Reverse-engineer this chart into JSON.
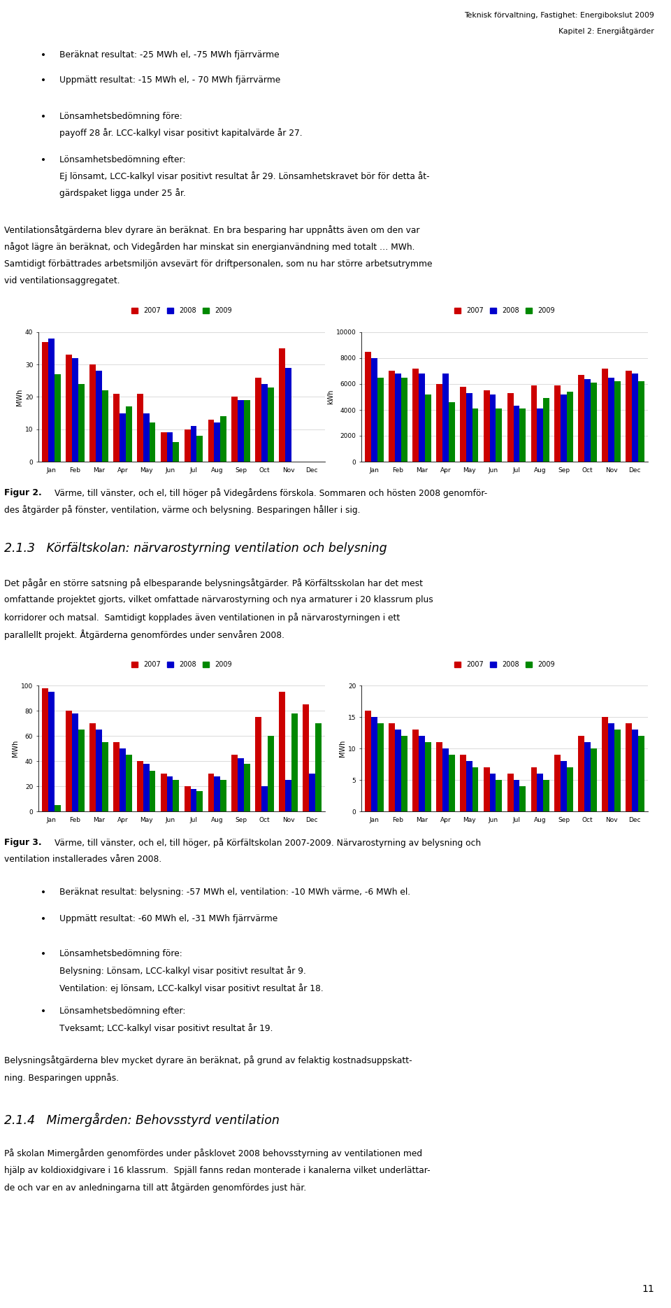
{
  "header_line1": "Teknisk förvaltning, Fastighet: Energibokslut 2009",
  "header_line2": "Kapitel 2: Energiåtgärder",
  "page_number": "11",
  "months": [
    "Jan",
    "Feb",
    "Mar",
    "Apr",
    "May",
    "Jun",
    "Jul",
    "Aug",
    "Sep",
    "Oct",
    "Nov",
    "Dec"
  ],
  "chart1_left_2007": [
    37,
    33,
    30,
    21,
    21,
    9,
    10,
    13,
    20,
    26,
    35,
    0
  ],
  "chart1_left_2008": [
    38,
    32,
    28,
    15,
    15,
    9,
    11,
    12,
    19,
    24,
    29,
    0
  ],
  "chart1_left_2009": [
    27,
    24,
    22,
    17,
    12,
    6,
    8,
    14,
    19,
    23,
    0,
    0
  ],
  "chart1_right_2007": [
    8500,
    7000,
    7200,
    6000,
    5800,
    5500,
    5300,
    5900,
    5900,
    6700,
    7200,
    7000
  ],
  "chart1_right_2008": [
    8000,
    6800,
    6800,
    6800,
    5300,
    5200,
    4300,
    4100,
    5200,
    6400,
    6500,
    6800
  ],
  "chart1_right_2009": [
    6500,
    6500,
    5200,
    4600,
    4100,
    4100,
    4100,
    4900,
    5400,
    6100,
    6200,
    6200
  ],
  "chart2_left_2007": [
    98,
    80,
    70,
    55,
    40,
    30,
    20,
    30,
    45,
    75,
    95,
    85
  ],
  "chart2_left_2008": [
    95,
    78,
    65,
    50,
    38,
    28,
    18,
    28,
    42,
    20,
    25,
    30
  ],
  "chart2_left_2009": [
    5,
    65,
    55,
    45,
    32,
    25,
    16,
    25,
    38,
    60,
    78,
    70
  ],
  "chart2_right_2007": [
    16,
    14,
    13,
    11,
    9,
    7,
    6,
    7,
    9,
    12,
    15,
    14
  ],
  "chart2_right_2008": [
    15,
    13,
    12,
    10,
    8,
    6,
    5,
    6,
    8,
    11,
    14,
    13
  ],
  "chart2_right_2009": [
    14,
    12,
    11,
    9,
    7,
    5,
    4,
    5,
    7,
    10,
    13,
    12
  ],
  "color_2007": "#cc0000",
  "color_2008": "#0000cc",
  "color_2009": "#008800"
}
